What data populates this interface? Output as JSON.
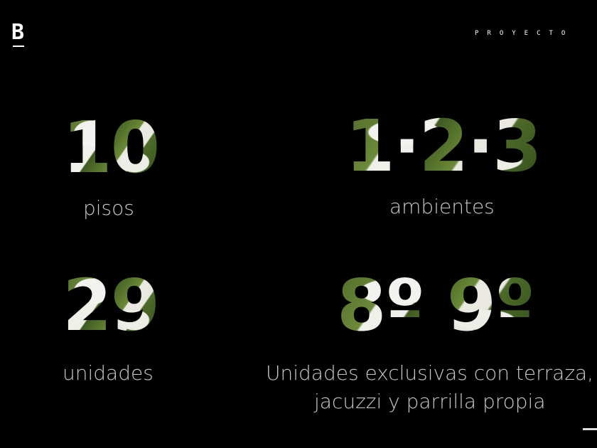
{
  "header": {
    "logo": "B",
    "nav_item": "PROYECTO"
  },
  "stats": [
    {
      "value": "10",
      "label": "pisos"
    },
    {
      "value": "1·2·3",
      "label": "ambientes"
    },
    {
      "value": "29",
      "label": "unidades"
    },
    {
      "value": "8º 9º",
      "label_line1": "Unidades exclusivas con terraza,",
      "label_line2": "jacuzzi y parrilla propia"
    }
  ],
  "colors": {
    "background": "#000000",
    "leaf_green": "#4f6a2a",
    "text": "#c8c8c8"
  }
}
